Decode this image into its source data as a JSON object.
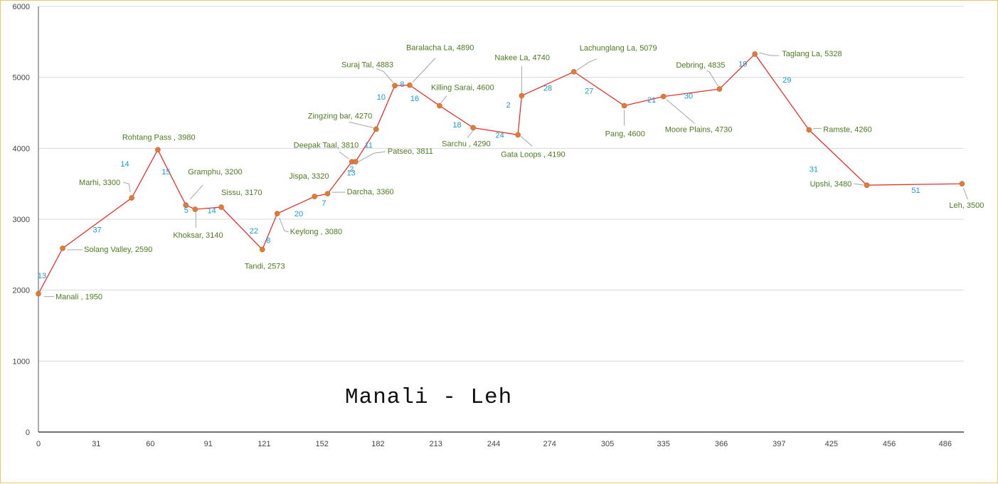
{
  "chart_data": {
    "type": "line",
    "title": "Manali - Leh",
    "xlabel": "",
    "ylabel": "",
    "xlim": [
      0,
      496
    ],
    "ylim": [
      0,
      6000
    ],
    "grid": true,
    "x_ticks": [
      "0",
      "31",
      "60",
      "91",
      "121",
      "152",
      "182",
      "213",
      "244",
      "274",
      "305",
      "335",
      "366",
      "397",
      "425",
      "456",
      "486"
    ],
    "y_ticks": [
      "0",
      "1000",
      "2000",
      "3000",
      "4000",
      "5000",
      "6000"
    ],
    "line_color": "#e8231f",
    "marker_color": "#e07b39",
    "points": [
      {
        "x": 0,
        "y": 1950,
        "label": "Manali , 1950"
      },
      {
        "x": 13,
        "y": 2590,
        "label": "Solang Valley, 2590"
      },
      {
        "x": 50,
        "y": 3300,
        "label": "Marhi, 3300"
      },
      {
        "x": 64,
        "y": 3980,
        "label": "Rohtang Pass , 3980"
      },
      {
        "x": 79,
        "y": 3200,
        "label": "Gramphu, 3200"
      },
      {
        "x": 84,
        "y": 3140,
        "label": "Khoksar,  3140"
      },
      {
        "x": 98,
        "y": 3170,
        "label": "Sissu, 3170"
      },
      {
        "x": 120,
        "y": 2573,
        "label": "Tandi, 2573"
      },
      {
        "x": 128,
        "y": 3080,
        "label": "Keylong , 3080"
      },
      {
        "x": 148,
        "y": 3320,
        "label": "Jispa, 3320"
      },
      {
        "x": 155,
        "y": 3360,
        "label": "Darcha, 3360"
      },
      {
        "x": 168,
        "y": 3810,
        "label": "Deepak Taal, 3810"
      },
      {
        "x": 170,
        "y": 3811,
        "label": "Patseo, 3811"
      },
      {
        "x": 181,
        "y": 4270,
        "label": "Zingzing bar, 4270"
      },
      {
        "x": 191,
        "y": 4883,
        "label": "Suraj Tal, 4883"
      },
      {
        "x": 199,
        "y": 4890,
        "label": "Baralacha La, 4890"
      },
      {
        "x": 215,
        "y": 4600,
        "label": "Killing Sarai, 4600"
      },
      {
        "x": 233,
        "y": 4290,
        "label": "Sarchu , 4290"
      },
      {
        "x": 257,
        "y": 4190,
        "label": "Gata Loops , 4190"
      },
      {
        "x": 259,
        "y": 4740,
        "label": "Nakee La, 4740"
      },
      {
        "x": 287,
        "y": 5079,
        "label": "Lachunglang La, 5079"
      },
      {
        "x": 314,
        "y": 4600,
        "label": "Pang, 4600"
      },
      {
        "x": 335,
        "y": 4730,
        "label": "Moore Plains, 4730"
      },
      {
        "x": 365,
        "y": 4835,
        "label": "Debring, 4835"
      },
      {
        "x": 384,
        "y": 5328,
        "label": "Taglang La, 5328"
      },
      {
        "x": 413,
        "y": 4260,
        "label": "Ramste, 4260"
      },
      {
        "x": 444,
        "y": 3480,
        "label": "Upshi, 3480"
      },
      {
        "x": 495,
        "y": 3500,
        "label": "Leh, 3500"
      }
    ],
    "segment_distances": [
      "13",
      "37",
      "14",
      "15",
      "5",
      "14",
      "22",
      "8",
      "20",
      "7",
      "13",
      "2",
      "11",
      "10",
      "8",
      "16",
      "18",
      "24",
      "2",
      "28",
      "27",
      "21",
      "30",
      "19",
      "29",
      "31",
      "51"
    ]
  }
}
